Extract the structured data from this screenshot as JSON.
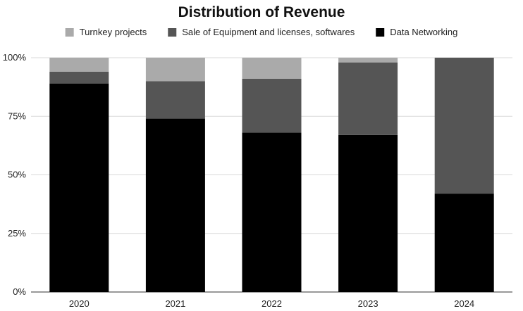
{
  "chart_data": {
    "type": "bar",
    "stacked": true,
    "title": "Distribution of Revenue",
    "xlabel": "",
    "ylabel": "",
    "categories": [
      "2020",
      "2021",
      "2022",
      "2023",
      "2024"
    ],
    "series": [
      {
        "name": "Data Networking",
        "color": "#000000",
        "values": [
          89,
          74,
          68,
          67,
          42
        ]
      },
      {
        "name": "Sale of Equipment and licenses, softwares",
        "color": "#555555",
        "values": [
          5,
          16,
          23,
          31,
          58
        ]
      },
      {
        "name": "Turnkey projects",
        "color": "#aaaaaa",
        "values": [
          6,
          10,
          9,
          2,
          0
        ]
      }
    ],
    "legend_order": [
      2,
      1,
      0
    ],
    "legend_position": "top",
    "ylim": [
      0,
      100
    ],
    "yticks": [
      0,
      25,
      50,
      75,
      100
    ],
    "ytick_labels": [
      "0%",
      "25%",
      "50%",
      "75%",
      "100%"
    ],
    "grid": true
  }
}
